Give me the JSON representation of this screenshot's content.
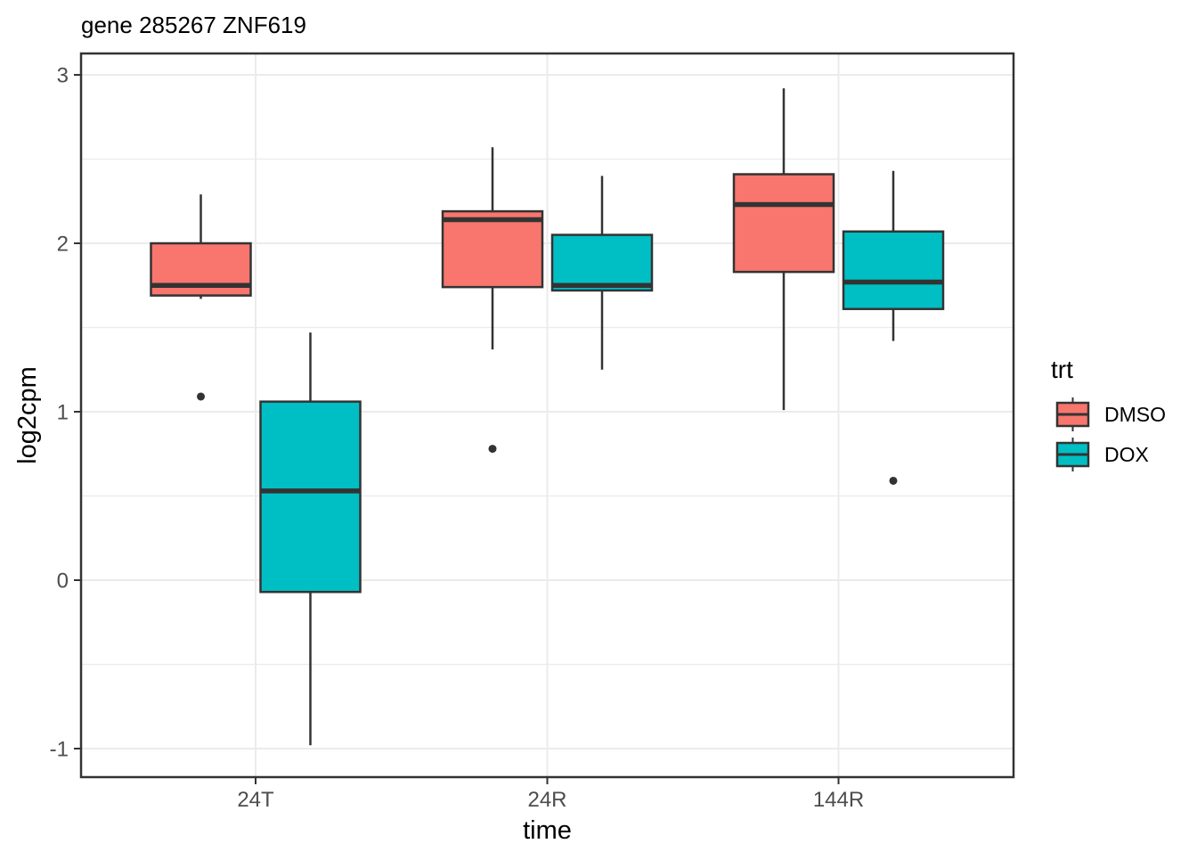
{
  "chart_data": {
    "type": "boxplot",
    "title": "gene 285267 ZNF619",
    "xlabel": "time",
    "ylabel": "log2cpm",
    "categories": [
      "24T",
      "24R",
      "144R"
    ],
    "ylim": [
      -1.17,
      3.13
    ],
    "y_major_ticks": [
      3,
      2,
      1,
      0,
      -1
    ],
    "y_minor_ticks": [
      2.5,
      1.5,
      0.5,
      -0.5
    ],
    "grid": true,
    "legend_title": "trt",
    "legend_position": "right",
    "series": [
      {
        "name": "DMSO",
        "color": "#F8766D",
        "boxes": [
          {
            "category": "24T",
            "whisker_low": 1.67,
            "q1": 1.69,
            "median": 1.75,
            "q3": 2.0,
            "whisker_high": 2.29,
            "outliers": [
              1.09
            ]
          },
          {
            "category": "24R",
            "whisker_low": 1.37,
            "q1": 1.74,
            "median": 2.14,
            "q3": 2.19,
            "whisker_high": 2.57,
            "outliers": [
              0.78
            ]
          },
          {
            "category": "144R",
            "whisker_low": 1.01,
            "q1": 1.83,
            "median": 2.23,
            "q3": 2.41,
            "whisker_high": 2.92,
            "outliers": []
          }
        ]
      },
      {
        "name": "DOX",
        "color": "#00BFC4",
        "boxes": [
          {
            "category": "24T",
            "whisker_low": -0.98,
            "q1": -0.07,
            "median": 0.53,
            "q3": 1.06,
            "whisker_high": 1.47,
            "outliers": []
          },
          {
            "category": "24R",
            "whisker_low": 1.25,
            "q1": 1.72,
            "median": 1.75,
            "q3": 2.05,
            "whisker_high": 2.4,
            "outliers": []
          },
          {
            "category": "144R",
            "whisker_low": 1.42,
            "q1": 1.61,
            "median": 1.77,
            "q3": 2.07,
            "whisker_high": 2.43,
            "outliers": [
              0.59
            ]
          }
        ]
      }
    ],
    "colors": {
      "outline": "#333333",
      "grid": "#EBEBEB",
      "axis_text": "#4D4D4D",
      "text": "#000000",
      "background": "#FFFFFF"
    }
  }
}
